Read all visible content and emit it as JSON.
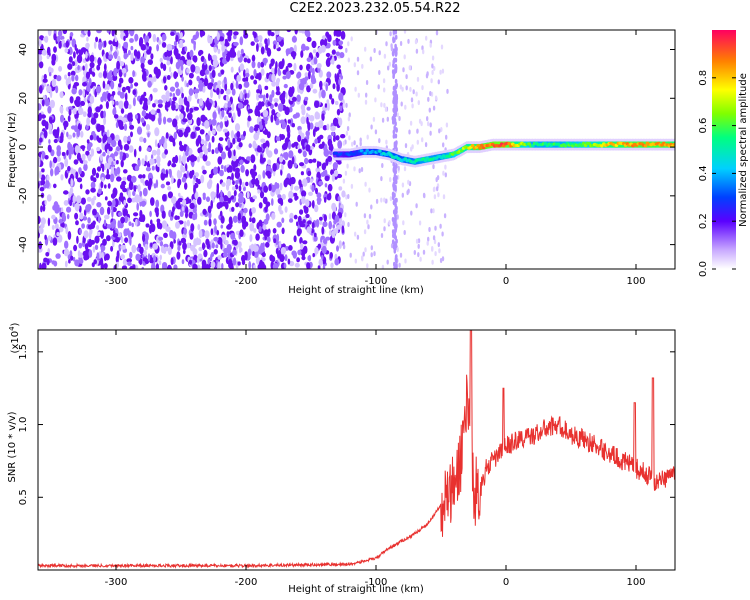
{
  "title": "C2E2.2023.232.05.54.R22",
  "chart_data": [
    {
      "type": "heatmap",
      "title": "C2E2.2023.232.05.54.R22",
      "xlabel": "Height of straight line (km)",
      "ylabel": "Frequency (Hz)",
      "xlim": [
        -360,
        130
      ],
      "ylim": [
        -50,
        48
      ],
      "xticks": [
        "-300",
        "-200",
        "-100",
        "0",
        "100"
      ],
      "yticks": [
        "-40",
        "-20",
        "0",
        "20",
        "40"
      ],
      "colorbar": {
        "label": "Normalized spectral amplitude",
        "ticks": [
          "0.0",
          "0.2",
          "0.4",
          "0.6",
          "0.8"
        ],
        "range": [
          0,
          1
        ]
      },
      "ridge": {
        "x": [
          -130,
          -120,
          -110,
          -100,
          -90,
          -80,
          -70,
          -60,
          -50,
          -40,
          -30,
          -20,
          -10,
          0,
          20,
          40,
          60,
          80,
          100,
          120,
          130
        ],
        "frequency": [
          -3,
          -3,
          -2,
          -2,
          -3,
          -5,
          -6,
          -5,
          -4,
          -3,
          0,
          0,
          1,
          1,
          1,
          1,
          1,
          1,
          1,
          1,
          1
        ],
        "amplitude": [
          0.25,
          0.3,
          0.35,
          0.4,
          0.45,
          0.45,
          0.5,
          0.55,
          0.5,
          0.6,
          0.7,
          0.85,
          0.9,
          0.9,
          0.55,
          0.55,
          0.6,
          0.8,
          0.85,
          0.85,
          0.8
        ]
      }
    },
    {
      "type": "line",
      "xlabel": "Height of straight line (km)",
      "ylabel": "SNR (10 * v/v)",
      "y_multiplier": "(x10",
      "y_multiplier_exp": "4",
      "y_multiplier_close": ")",
      "xlim": [
        -360,
        130
      ],
      "ylim": [
        0.0,
        1.65
      ],
      "xticks": [
        "-300",
        "-200",
        "-100",
        "0",
        "100"
      ],
      "yticks": [
        "0.5",
        "1.0",
        "1.5"
      ],
      "color": "#e8312f",
      "x": [
        -360,
        -300,
        -200,
        -120,
        -100,
        -90,
        -80,
        -70,
        -60,
        -50,
        -40,
        -35,
        -30,
        -25,
        -20,
        -15,
        -10,
        -5,
        0,
        10,
        20,
        30,
        40,
        50,
        60,
        70,
        80,
        90,
        100,
        110,
        115,
        120,
        130
      ],
      "y": [
        0.03,
        0.03,
        0.03,
        0.04,
        0.08,
        0.15,
        0.2,
        0.25,
        0.32,
        0.45,
        0.55,
        0.75,
        1.2,
        0.55,
        0.55,
        0.7,
        0.75,
        0.8,
        0.85,
        0.9,
        0.92,
        0.97,
        1.0,
        0.93,
        0.9,
        0.85,
        0.8,
        0.75,
        0.7,
        0.65,
        0.6,
        0.62,
        0.68
      ],
      "peaks": [
        {
          "x": -27,
          "y": 1.65
        },
        {
          "x": -2,
          "y": 1.25
        },
        {
          "x": 99,
          "y": 1.15
        },
        {
          "x": 113,
          "y": 1.32
        }
      ]
    }
  ]
}
